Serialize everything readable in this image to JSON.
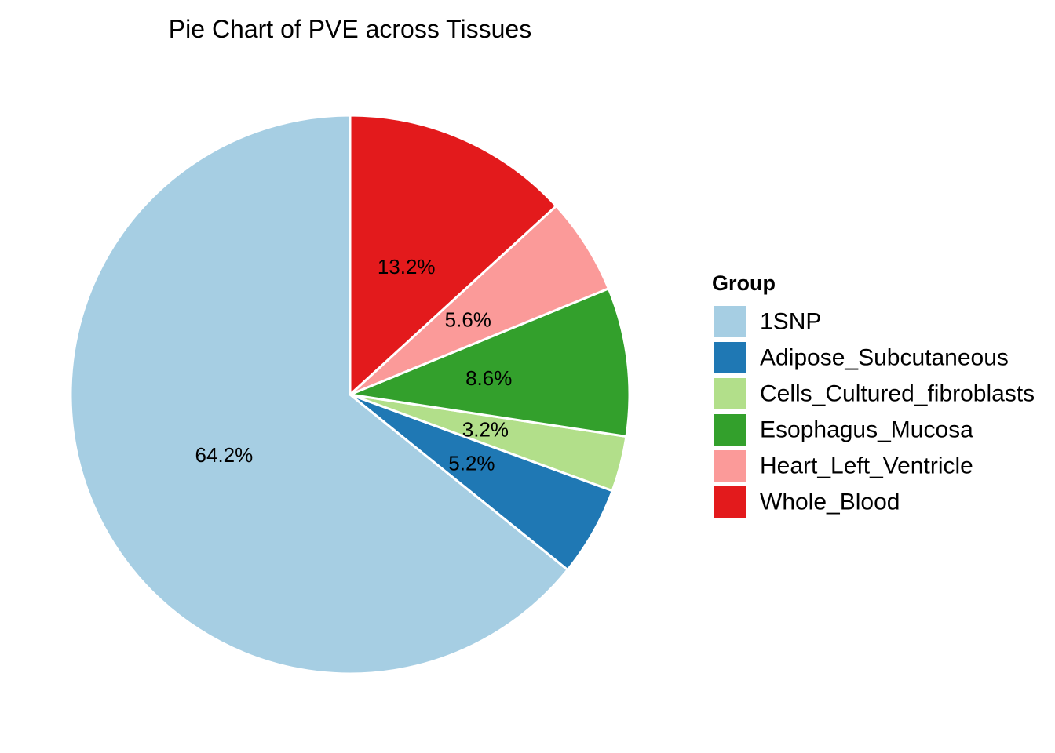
{
  "chart_data": {
    "type": "pie",
    "title": "Pie Chart of PVE across Tissues",
    "legend_title": "Group",
    "legend_position": "right",
    "start": "top",
    "direction": "counterclockwise",
    "slices": [
      {
        "name": "1SNP",
        "value": 64.2,
        "label": "64.2%",
        "color": "#A6CEE3"
      },
      {
        "name": "Adipose_Subcutaneous",
        "value": 5.2,
        "label": "5.2%",
        "color": "#1F78B4"
      },
      {
        "name": "Cells_Cultured_fibroblasts",
        "value": 3.2,
        "label": "3.2%",
        "color": "#B2DF8A"
      },
      {
        "name": "Esophagus_Mucosa",
        "value": 8.6,
        "label": "8.6%",
        "color": "#33A02C"
      },
      {
        "name": "Heart_Left_Ventricle",
        "value": 5.6,
        "label": "5.6%",
        "color": "#FB9A99"
      },
      {
        "name": "Whole_Blood",
        "value": 13.2,
        "label": "13.2%",
        "color": "#E31A1C"
      }
    ]
  }
}
